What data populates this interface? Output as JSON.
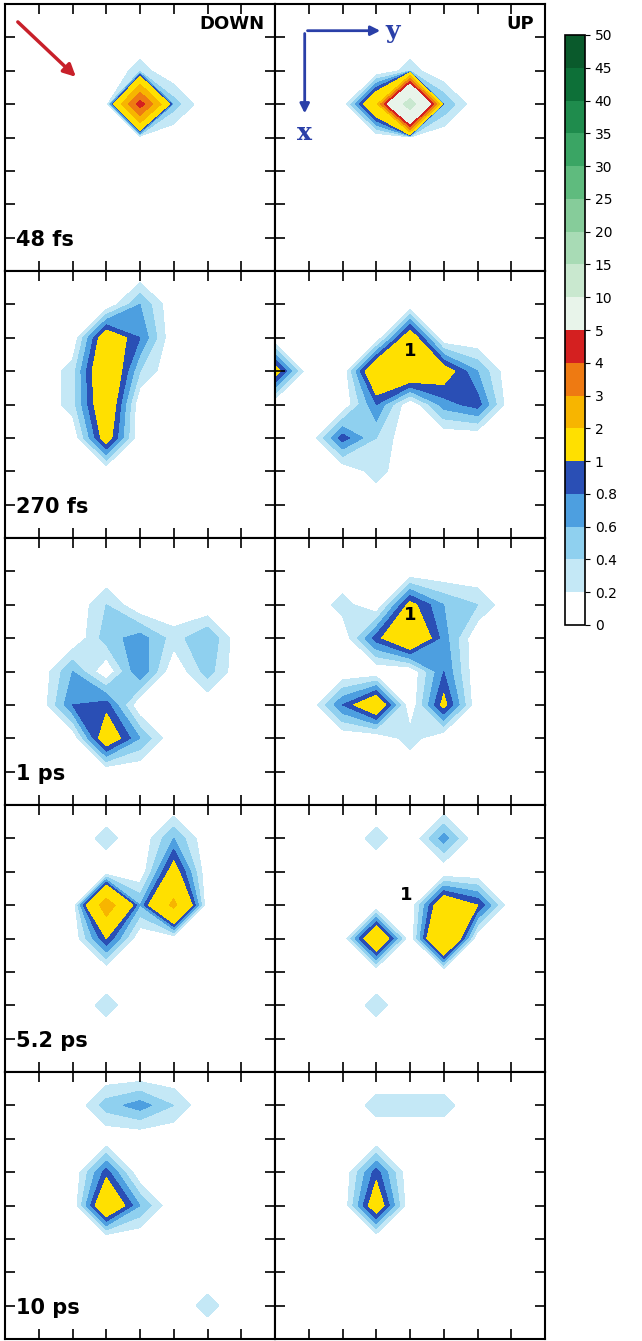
{
  "chart_data": {
    "type": "contour",
    "columns": [
      "DOWN",
      "UP"
    ],
    "axis_labels": {
      "x": "x",
      "y": "y"
    },
    "xlim": [
      0,
      8
    ],
    "ylim": [
      8,
      0
    ],
    "xticks": [
      1,
      2,
      3,
      4,
      5,
      6,
      7
    ],
    "yticks": [
      1,
      2,
      3,
      4,
      5,
      6,
      7
    ],
    "tick_labels": false,
    "colorbar": {
      "levels": [
        0,
        0.2,
        0.4,
        0.6,
        0.8,
        1,
        2,
        3,
        4,
        5,
        10,
        15,
        20,
        25,
        30,
        35,
        40,
        45,
        50
      ],
      "colors": [
        "#ffffff",
        "#c4e8f6",
        "#8fd0ef",
        "#4d9fe0",
        "#2a4fb5",
        "#ffe000",
        "#f7b500",
        "#ee7a12",
        "#d42020",
        "#e8f4ea",
        "#c9e8cf",
        "#a8dbb5",
        "#86cc9a",
        "#5fbb7e",
        "#3aa564",
        "#1f8c4d",
        "#0d7038",
        "#0a5a2c"
      ],
      "ticks": [
        0,
        0.2,
        0.4,
        0.6,
        0.8,
        1,
        2,
        3,
        4,
        5,
        10,
        15,
        20,
        25,
        30,
        35,
        40,
        45,
        50
      ]
    },
    "panels": [
      {
        "time": "48 fs",
        "DOWN": [
          [
            0,
            0,
            0,
            0,
            0,
            0,
            0,
            0,
            0
          ],
          [
            0,
            0,
            0,
            0,
            0,
            0,
            0,
            0,
            0
          ],
          [
            0,
            0,
            0,
            0,
            0.3,
            0,
            0,
            0,
            0
          ],
          [
            0,
            0,
            0,
            0,
            4.5,
            0.5,
            0,
            0,
            0
          ],
          [
            0,
            0,
            0,
            0,
            0,
            0,
            0,
            0,
            0
          ],
          [
            0,
            0,
            0,
            0,
            0,
            0,
            0,
            0,
            0
          ],
          [
            0,
            0,
            0,
            0,
            0,
            0,
            0,
            0,
            0
          ],
          [
            0,
            0,
            0,
            0,
            0,
            0,
            0,
            0,
            0
          ],
          [
            0,
            0,
            0,
            0,
            0,
            0,
            0,
            0,
            0
          ]
        ],
        "UP": [
          [
            0,
            0,
            0,
            0,
            0,
            0,
            0,
            0,
            0
          ],
          [
            0,
            0,
            0,
            0,
            0,
            0,
            0,
            0,
            0
          ],
          [
            0,
            0,
            0,
            0,
            0.3,
            0,
            0,
            0,
            0
          ],
          [
            0,
            0,
            0,
            1.6,
            12,
            0.6,
            0,
            0,
            0
          ],
          [
            0,
            0,
            0,
            0,
            0,
            0,
            0,
            0,
            0
          ],
          [
            0,
            0,
            0,
            0,
            0,
            0,
            0,
            0,
            0
          ],
          [
            0,
            0,
            0,
            0,
            0,
            0,
            0,
            0,
            0
          ],
          [
            0,
            0,
            0,
            0,
            0,
            0,
            0,
            0,
            0
          ],
          [
            0,
            0,
            0,
            0,
            0,
            0,
            0,
            0,
            0
          ]
        ],
        "annotations": []
      },
      {
        "time": "270 fs",
        "DOWN": [
          [
            0,
            0,
            0,
            0,
            0,
            0,
            0,
            0,
            0
          ],
          [
            0,
            0,
            0,
            0,
            0.6,
            0,
            0,
            0,
            0
          ],
          [
            0,
            0,
            0,
            1.3,
            0.8,
            0,
            0,
            0,
            0
          ],
          [
            0,
            0,
            0.3,
            1.5,
            0.4,
            0,
            0,
            0,
            0
          ],
          [
            0,
            0,
            0.3,
            1.4,
            0,
            0,
            0,
            0,
            0
          ],
          [
            0,
            0,
            0,
            1.2,
            0,
            0,
            0,
            0,
            0
          ],
          [
            0,
            0,
            0,
            0,
            0,
            0,
            0,
            0,
            0
          ],
          [
            0,
            0,
            0,
            0,
            0,
            0,
            0,
            0,
            0
          ],
          [
            0,
            0,
            0,
            0,
            0,
            0,
            0,
            0,
            0
          ]
        ],
        "UP": [
          [
            0,
            0,
            0,
            0,
            0,
            0,
            0,
            0,
            0
          ],
          [
            0,
            0,
            0,
            0,
            0,
            0,
            0,
            0,
            0
          ],
          [
            0,
            0,
            0,
            0,
            1.3,
            0,
            0,
            0,
            0
          ],
          [
            1.2,
            0,
            0,
            1.5,
            1.5,
            1.2,
            0.6,
            0,
            0
          ],
          [
            0,
            0,
            0,
            0.8,
            0,
            0.7,
            0.9,
            0,
            0
          ],
          [
            0,
            0,
            0.9,
            0.4,
            0,
            0,
            0,
            0,
            0
          ],
          [
            0,
            0,
            0,
            0.3,
            0,
            0,
            0,
            0,
            0
          ],
          [
            0,
            0,
            0,
            0,
            0,
            0,
            0,
            0,
            0
          ],
          [
            0,
            0,
            0,
            0,
            0,
            0,
            0,
            0,
            0
          ]
        ],
        "annotations": [
          {
            "text": "1",
            "x": 4.0,
            "y": 2.4
          }
        ]
      },
      {
        "time": "1 ps",
        "DOWN": [
          [
            0,
            0,
            0,
            0,
            0,
            0,
            0,
            0,
            0
          ],
          [
            0,
            0,
            0,
            0,
            0,
            0,
            0,
            0,
            0
          ],
          [
            0,
            0,
            0,
            0.4,
            0,
            0,
            0,
            0,
            0
          ],
          [
            0,
            0,
            0,
            0.5,
            0.7,
            0.3,
            0.6,
            0,
            0
          ],
          [
            0,
            0,
            0.6,
            0,
            0.8,
            0,
            0.5,
            0,
            0
          ],
          [
            0,
            0,
            0.8,
            0.9,
            0,
            0,
            0,
            0,
            0
          ],
          [
            0,
            0,
            0,
            1.3,
            0.6,
            0,
            0,
            0,
            0
          ],
          [
            0,
            0,
            0,
            0,
            0,
            0,
            0,
            0,
            0
          ],
          [
            0,
            0,
            0,
            0,
            0,
            0,
            0,
            0,
            0
          ]
        ],
        "UP": [
          [
            0,
            0,
            0,
            0,
            0,
            0,
            0,
            0,
            0
          ],
          [
            0,
            0,
            0,
            0,
            0,
            0,
            0,
            0,
            0
          ],
          [
            0,
            0,
            0.3,
            0,
            1.1,
            0.6,
            0.4,
            0,
            0
          ],
          [
            0,
            0,
            0,
            0.9,
            1.5,
            0.7,
            0,
            0,
            0
          ],
          [
            0,
            0,
            0,
            0,
            0,
            0.8,
            0,
            0,
            0
          ],
          [
            0,
            0,
            0.8,
            1.4,
            0,
            1.1,
            0,
            0,
            0
          ],
          [
            0,
            0,
            0,
            0,
            0.3,
            0,
            0,
            0,
            0
          ],
          [
            0,
            0,
            0,
            0,
            0,
            0,
            0,
            0,
            0
          ],
          [
            0,
            0,
            0,
            0,
            0,
            0,
            0,
            0,
            0
          ]
        ],
        "annotations": [
          {
            "text": "1",
            "x": 4.0,
            "y": 2.3
          }
        ]
      },
      {
        "time": "5.2 ps",
        "DOWN": [
          [
            0,
            0,
            0,
            0,
            0,
            0,
            0,
            0,
            0
          ],
          [
            0,
            0,
            0,
            0.3,
            0,
            0.6,
            0,
            0,
            0
          ],
          [
            0,
            0,
            0,
            0,
            0,
            1.2,
            0,
            0,
            0
          ],
          [
            0,
            0,
            0,
            2.5,
            0.6,
            2.2,
            0,
            0,
            0
          ],
          [
            0,
            0,
            0,
            1.0,
            0,
            0,
            0,
            0,
            0
          ],
          [
            0,
            0,
            0,
            0,
            0,
            0,
            0,
            0,
            0
          ],
          [
            0,
            0,
            0,
            0.3,
            0,
            0,
            0,
            0,
            0
          ],
          [
            0,
            0,
            0,
            0,
            0,
            0,
            0,
            0,
            0
          ],
          [
            0,
            0,
            0,
            0,
            0,
            0,
            0,
            0,
            0
          ]
        ],
        "UP": [
          [
            0,
            0,
            0,
            0,
            0,
            0,
            0,
            0,
            0
          ],
          [
            0,
            0,
            0,
            0.3,
            0,
            0.7,
            0,
            0,
            0
          ],
          [
            0,
            0,
            0,
            0,
            0,
            0,
            0,
            0,
            0
          ],
          [
            0,
            0,
            0,
            0,
            0,
            1.4,
            1.0,
            0,
            0
          ],
          [
            0,
            0,
            0,
            1.6,
            0,
            2.0,
            0,
            0,
            0
          ],
          [
            0,
            0,
            0,
            0,
            0,
            0,
            0,
            0,
            0
          ],
          [
            0,
            0,
            0,
            0.3,
            0,
            0,
            0,
            0,
            0
          ],
          [
            0,
            0,
            0,
            0,
            0,
            0,
            0,
            0,
            0
          ],
          [
            0,
            0,
            0,
            0,
            0,
            0,
            0,
            0,
            0
          ]
        ],
        "annotations": [
          {
            "text": "1",
            "x": 3.9,
            "y": 2.7
          }
        ]
      },
      {
        "time": "10 ps",
        "DOWN": [
          [
            0,
            0,
            0,
            0,
            0,
            0,
            0,
            0,
            0
          ],
          [
            0,
            0,
            0,
            0.5,
            0.7,
            0.4,
            0,
            0,
            0
          ],
          [
            0,
            0,
            0,
            0,
            0,
            0,
            0,
            0,
            0
          ],
          [
            0,
            0,
            0,
            0.9,
            0,
            0,
            0,
            0,
            0
          ],
          [
            0,
            0,
            0,
            1.5,
            0.6,
            0,
            0,
            0,
            0
          ],
          [
            0,
            0,
            0,
            0,
            0,
            0,
            0,
            0,
            0
          ],
          [
            0,
            0,
            0,
            0,
            0,
            0,
            0,
            0,
            0
          ],
          [
            0,
            0,
            0,
            0,
            0,
            0,
            0.3,
            0,
            0
          ],
          [
            0,
            0,
            0,
            0,
            0,
            0,
            0,
            0,
            0
          ]
        ],
        "UP": [
          [
            0,
            0,
            0,
            0,
            0,
            0,
            0,
            0,
            0
          ],
          [
            0,
            0,
            0,
            0.3,
            0.3,
            0.3,
            0,
            0,
            0
          ],
          [
            0,
            0,
            0,
            0,
            0,
            0,
            0,
            0,
            0
          ],
          [
            0,
            0,
            0,
            0.9,
            0,
            0,
            0,
            0,
            0
          ],
          [
            0,
            0,
            0,
            1.3,
            0,
            0,
            0,
            0,
            0
          ],
          [
            0,
            0,
            0,
            0,
            0,
            0,
            0,
            0,
            0
          ],
          [
            0,
            0,
            0,
            0,
            0,
            0,
            0,
            0,
            0
          ],
          [
            0,
            0,
            0,
            0,
            0,
            0,
            0,
            0,
            0
          ],
          [
            0,
            0,
            0,
            0,
            0,
            0,
            0,
            0,
            0
          ]
        ],
        "annotations": []
      }
    ]
  }
}
